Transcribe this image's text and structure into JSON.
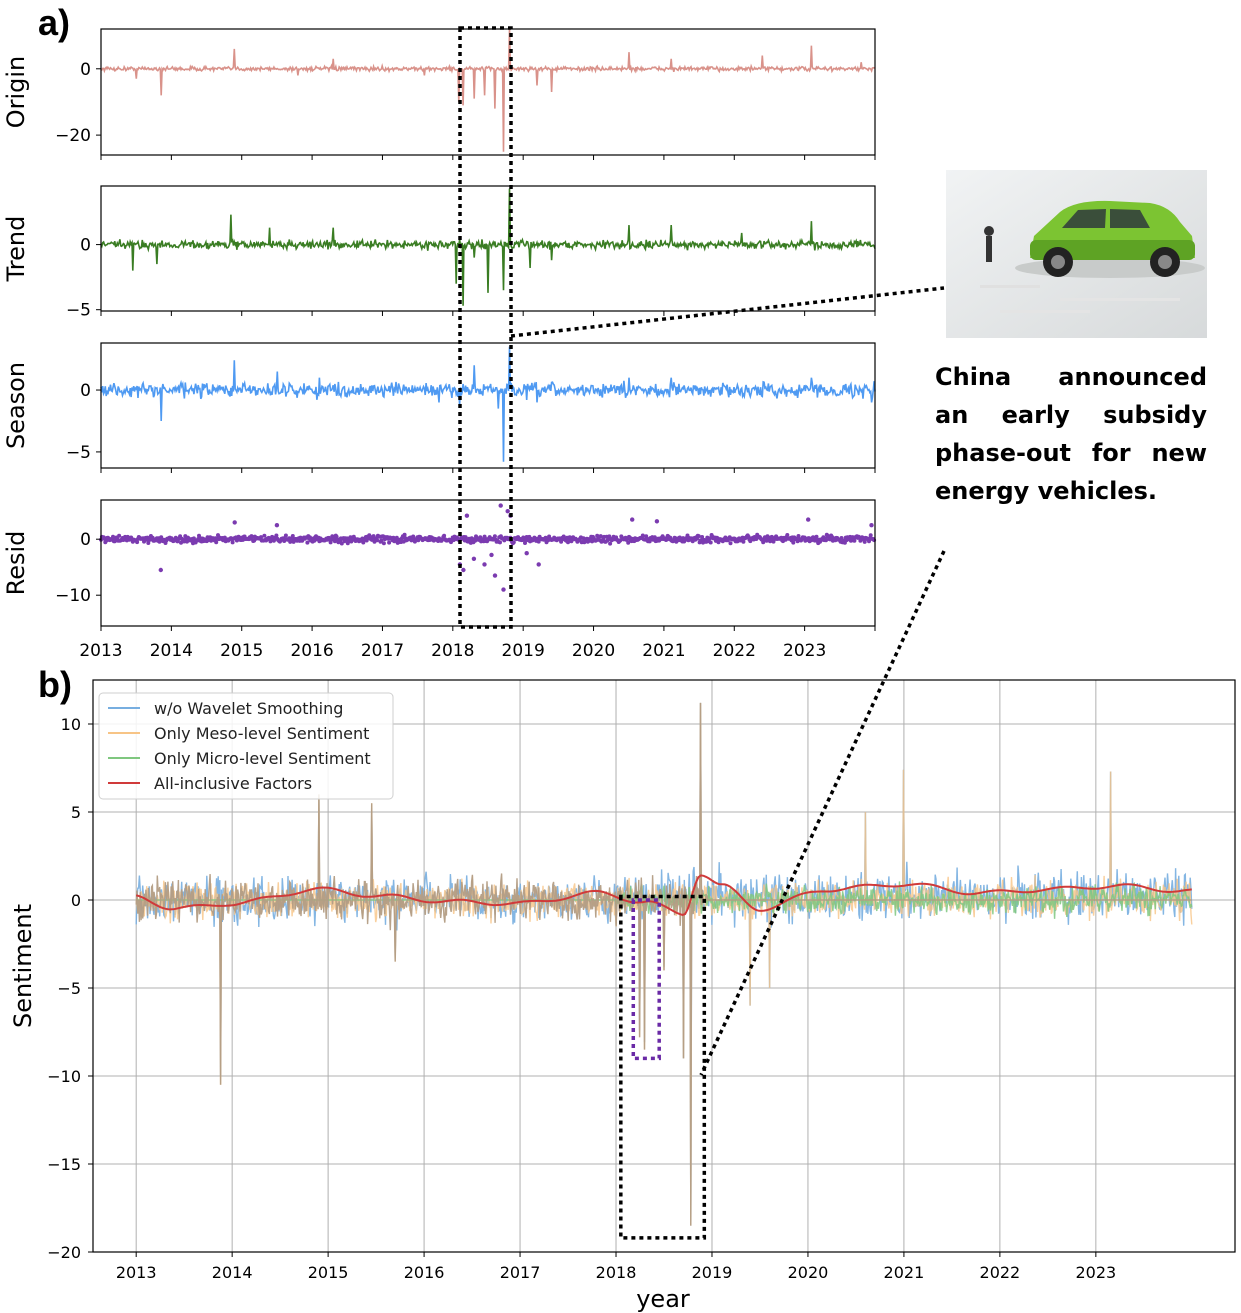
{
  "panels": {
    "a": "a)",
    "b": "b)"
  },
  "annotation": {
    "image_alt": "car-photo",
    "caption": "China announced an early subsidy phase-out for new energy vehicles."
  },
  "colors": {
    "origin": "#d9928a",
    "trend": "#3a7d23",
    "season": "#4f9af2",
    "resid": "#7b3bb0",
    "wavelet": "#77aee0",
    "meso": "#f7c486",
    "micro": "#7fc77f",
    "all": "#d03a3a",
    "overlap": "#b39d84"
  },
  "chart_data": [
    {
      "type": "line",
      "title": "Origin",
      "ylabel": "Origin",
      "yticks": [
        0,
        -20
      ],
      "ytick_labels": [
        "0",
        "−20"
      ],
      "ylim": [
        -26,
        12
      ],
      "xlim": [
        2013,
        2024
      ],
      "baseline": 0,
      "noise": 1.0,
      "spikes": [
        [
          2013.5,
          -3
        ],
        [
          2013.85,
          -8
        ],
        [
          2014.9,
          6
        ],
        [
          2015.8,
          -2
        ],
        [
          2016.3,
          3
        ],
        [
          2017.6,
          -2
        ],
        [
          2018.08,
          -10
        ],
        [
          2018.15,
          -11
        ],
        [
          2018.3,
          -9
        ],
        [
          2018.45,
          -8
        ],
        [
          2018.6,
          -12
        ],
        [
          2018.72,
          -25
        ],
        [
          2018.8,
          12
        ],
        [
          2019.2,
          -5
        ],
        [
          2019.4,
          -7
        ],
        [
          2020.5,
          5
        ],
        [
          2021.1,
          3
        ],
        [
          2022.4,
          4
        ],
        [
          2023.1,
          7
        ],
        [
          2023.8,
          2
        ]
      ]
    },
    {
      "type": "line",
      "title": "Trend",
      "ylabel": "Trend",
      "yticks": [
        0,
        -5
      ],
      "ytick_labels": [
        "0",
        "−5"
      ],
      "ylim": [
        -5.1,
        4.5
      ],
      "baseline": 0,
      "noise": 0.5,
      "spikes": [
        [
          2013.45,
          -2
        ],
        [
          2013.8,
          -1.5
        ],
        [
          2014.85,
          2.3
        ],
        [
          2015.4,
          1.3
        ],
        [
          2016.3,
          1.3
        ],
        [
          2018.05,
          -3
        ],
        [
          2018.15,
          -4.7
        ],
        [
          2018.3,
          -1
        ],
        [
          2018.5,
          -3.7
        ],
        [
          2018.72,
          -3.5
        ],
        [
          2018.8,
          4.3
        ],
        [
          2019.1,
          -1.8
        ],
        [
          2019.4,
          -1.2
        ],
        [
          2020.5,
          1.5
        ],
        [
          2021.1,
          1.5
        ],
        [
          2022.1,
          0.9
        ],
        [
          2023.1,
          1.8
        ]
      ]
    },
    {
      "type": "line",
      "title": "Season",
      "ylabel": "Season",
      "yticks": [
        0,
        -5
      ],
      "ytick_labels": [
        "0",
        "−5"
      ],
      "ylim": [
        -6.3,
        3.8
      ],
      "baseline": 0,
      "noise": 0.7,
      "spikes": [
        [
          2013.85,
          -2.5
        ],
        [
          2014.9,
          2.4
        ],
        [
          2015.5,
          1.5
        ],
        [
          2016.1,
          1.0
        ],
        [
          2017.8,
          -1.0
        ],
        [
          2018.1,
          -1.2
        ],
        [
          2018.3,
          2.0
        ],
        [
          2018.65,
          -1.5
        ],
        [
          2018.72,
          -5.8
        ],
        [
          2018.8,
          3.5
        ],
        [
          2019.05,
          -0.8
        ],
        [
          2019.2,
          -1.0
        ],
        [
          2020.5,
          1.0
        ],
        [
          2021.1,
          1.0
        ],
        [
          2023.1,
          1.0
        ],
        [
          2023.95,
          -1.0
        ]
      ]
    },
    {
      "type": "scatter",
      "title": "Resid",
      "ylabel": "Resid",
      "yticks": [
        0,
        -10
      ],
      "ytick_labels": [
        "0",
        "−10"
      ],
      "ylim": [
        -15.5,
        7
      ],
      "baseline": 0,
      "noise": 0.7,
      "outliers": [
        [
          2013.85,
          -5.5
        ],
        [
          2014.9,
          3
        ],
        [
          2015.5,
          2.5
        ],
        [
          2018.1,
          -4.5
        ],
        [
          2018.15,
          -5.5
        ],
        [
          2018.2,
          4.2
        ],
        [
          2018.3,
          -3.5
        ],
        [
          2018.45,
          -4.5
        ],
        [
          2018.55,
          -2.8
        ],
        [
          2018.6,
          -6.5
        ],
        [
          2018.68,
          6.0
        ],
        [
          2018.72,
          -9.0
        ],
        [
          2018.78,
          5.0
        ],
        [
          2018.82,
          4.2
        ],
        [
          2019.05,
          -2.5
        ],
        [
          2019.22,
          -4.5
        ],
        [
          2020.55,
          3.5
        ],
        [
          2020.9,
          3.2
        ],
        [
          2023.05,
          3.5
        ],
        [
          2023.95,
          2.5
        ]
      ]
    },
    {
      "type": "line",
      "title": "",
      "xlabel": "year",
      "ylabel": "Sentiment",
      "xlim": [
        2012.55,
        2024.45
      ],
      "ylim": [
        -20,
        12.5
      ],
      "yticks": [
        10,
        5,
        0,
        -5,
        -10,
        -15,
        -20
      ],
      "ytick_labels": [
        "10",
        "5",
        "0",
        "−5",
        "−10",
        "−15",
        "−20"
      ],
      "xticks": [
        2013,
        2014,
        2015,
        2016,
        2017,
        2018,
        2019,
        2020,
        2021,
        2022,
        2023
      ],
      "xtick_labels": [
        "2013",
        "2014",
        "2015",
        "2016",
        "2017",
        "2018",
        "2019",
        "2020",
        "2021",
        "2022",
        "2023"
      ],
      "grid": true,
      "legend_position": "top-left",
      "series": [
        {
          "name": "w/o Wavelet Smoothing",
          "color_key": "wavelet"
        },
        {
          "name": "Only Meso-level Sentiment",
          "color_key": "meso"
        },
        {
          "name": "Only Micro-level Sentiment",
          "color_key": "micro"
        },
        {
          "name": "All-inclusive Factors",
          "color_key": "all"
        }
      ],
      "spikes": [
        [
          2013.88,
          -10.5
        ],
        [
          2014.9,
          6.0
        ],
        [
          2015.45,
          5.5
        ],
        [
          2015.7,
          -3.5
        ],
        [
          2018.0,
          -1.5
        ],
        [
          2018.25,
          -7.8
        ],
        [
          2018.3,
          -8.5
        ],
        [
          2018.5,
          -4.0
        ],
        [
          2018.7,
          -9.0
        ],
        [
          2018.78,
          -18.5
        ],
        [
          2018.88,
          11.2
        ],
        [
          2019.4,
          -6.0
        ],
        [
          2019.6,
          -5.0
        ],
        [
          2020.6,
          5.0
        ],
        [
          2021.0,
          7.4
        ],
        [
          2023.15,
          7.3
        ]
      ],
      "smooth_trend": [
        [
          2013.0,
          0.2
        ],
        [
          2013.4,
          -0.5
        ],
        [
          2014.0,
          -0.2
        ],
        [
          2014.9,
          0.6
        ],
        [
          2015.6,
          0.2
        ],
        [
          2016.3,
          -0.1
        ],
        [
          2017.0,
          -0.2
        ],
        [
          2017.8,
          0.4
        ],
        [
          2018.3,
          -0.1
        ],
        [
          2018.7,
          -0.8
        ],
        [
          2018.88,
          1.5
        ],
        [
          2019.1,
          0.8
        ],
        [
          2019.5,
          -0.5
        ],
        [
          2020.2,
          0.6
        ],
        [
          2021.0,
          0.9
        ],
        [
          2021.8,
          0.4
        ],
        [
          2022.5,
          0.6
        ],
        [
          2023.2,
          0.8
        ],
        [
          2024.0,
          0.5
        ]
      ]
    }
  ]
}
